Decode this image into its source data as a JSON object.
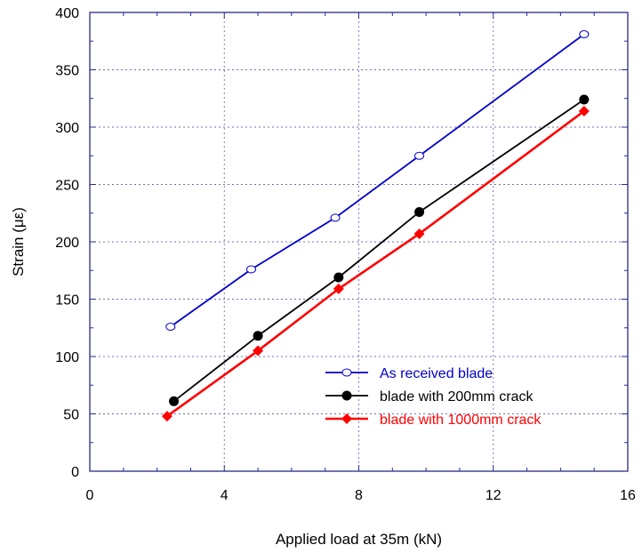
{
  "chart_data": {
    "type": "line",
    "xlabel": "Applied load at 35m (kN)",
    "ylabel": "Strain (με)",
    "xlim": [
      0,
      16
    ],
    "ylim": [
      0,
      400
    ],
    "xticks": [
      "0",
      "4",
      "8",
      "12",
      "16"
    ],
    "yticks": [
      "0",
      "50",
      "100",
      "150",
      "200",
      "250",
      "300",
      "350",
      "400"
    ],
    "grid": true,
    "legend_position": "bottom-right",
    "series": [
      {
        "name": "As received blade",
        "color": "#0000CC",
        "marker": "open-circle",
        "x": [
          2.4,
          4.8,
          7.3,
          9.8,
          14.7
        ],
        "y": [
          126,
          176,
          221,
          275,
          381
        ]
      },
      {
        "name": "blade with 200mm crack",
        "color": "#000000",
        "marker": "filled-circle",
        "x": [
          2.5,
          5.0,
          7.4,
          9.8,
          14.7
        ],
        "y": [
          61,
          118,
          169,
          226,
          324
        ]
      },
      {
        "name": "blade with 1000mm crack",
        "color": "#FF0000",
        "marker": "filled-diamond",
        "x": [
          2.3,
          5.0,
          7.4,
          9.8,
          14.7
        ],
        "y": [
          48,
          105,
          159,
          207,
          314
        ]
      }
    ]
  }
}
